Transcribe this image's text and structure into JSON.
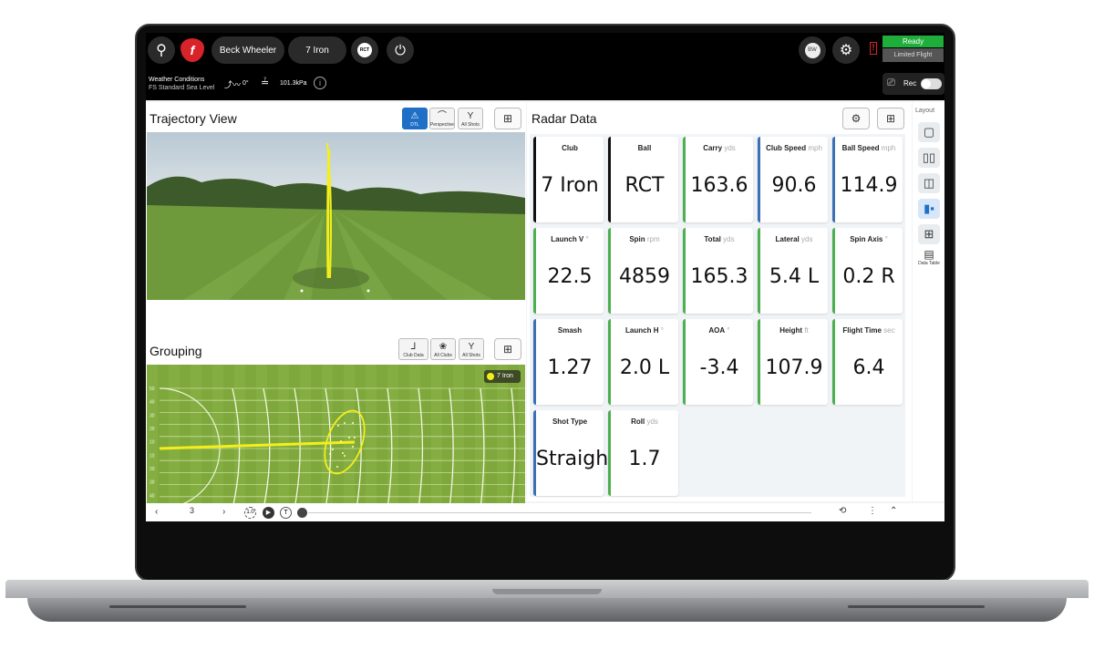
{
  "topbar": {
    "player_name": "Beck Wheeler",
    "club": "7 Iron",
    "ball_badge": "RCT",
    "avatar_initials": "BW",
    "status": "Ready",
    "mode": "Limited Flight",
    "weather_label": "Weather Conditions",
    "weather_value": "FS Standard Sea Level",
    "wind": "0°",
    "pressure": "101.3kPa",
    "rec_label": "Rec",
    "rec_on": false
  },
  "trajectory": {
    "title": "Trajectory View",
    "views": [
      {
        "label": "DTL",
        "icon": "dtl-icon",
        "active": true
      },
      {
        "label": "Perspective",
        "icon": "perspective-icon",
        "active": false
      },
      {
        "label": "All Shots",
        "icon": "all-shots-icon",
        "active": false
      }
    ]
  },
  "grouping": {
    "title": "Grouping",
    "filters": [
      {
        "label": "Club Data",
        "icon": "club-icon"
      },
      {
        "label": "All Clubs",
        "icon": "clubs-icon"
      },
      {
        "label": "All Shots",
        "icon": "all-shots-icon"
      }
    ],
    "legend": "7 Iron",
    "y_ticks": [
      "50",
      "40",
      "30",
      "20",
      "10",
      "10",
      "20",
      "30",
      "40",
      "50"
    ],
    "x_ticks": [
      "100",
      "150",
      "200",
      "250",
      "300"
    ],
    "colors": {
      "shot": "#f4ee1c",
      "grass": "#7fa83c"
    }
  },
  "radar": {
    "title": "Radar Data",
    "cards": [
      {
        "label": "Club",
        "unit": "",
        "value": "7 Iron",
        "accent": "#111111"
      },
      {
        "label": "Ball",
        "unit": "",
        "value": "RCT",
        "accent": "#111111"
      },
      {
        "label": "Carry",
        "unit": "yds",
        "value": "163.6",
        "accent": "#4caf50"
      },
      {
        "label": "Club Speed",
        "unit": "mph",
        "value": "90.6",
        "accent": "#3b6fb6"
      },
      {
        "label": "Ball Speed",
        "unit": "mph",
        "value": "114.9",
        "accent": "#3b6fb6"
      },
      {
        "label": "Launch V",
        "unit": "°",
        "value": "22.5",
        "accent": "#4caf50"
      },
      {
        "label": "Spin",
        "unit": "rpm",
        "value": "4859",
        "accent": "#4caf50"
      },
      {
        "label": "Total",
        "unit": "yds",
        "value": "165.3",
        "accent": "#4caf50"
      },
      {
        "label": "Lateral",
        "unit": "yds",
        "value": "5.4 L",
        "accent": "#4caf50"
      },
      {
        "label": "Spin Axis",
        "unit": "°",
        "value": "0.2 R",
        "accent": "#4caf50"
      },
      {
        "label": "Smash",
        "unit": "",
        "value": "1.27",
        "accent": "#3b6fb6"
      },
      {
        "label": "Launch H",
        "unit": "°",
        "value": "2.0 L",
        "accent": "#4caf50"
      },
      {
        "label": "AOA",
        "unit": "°",
        "value": "-3.4",
        "accent": "#4caf50"
      },
      {
        "label": "Height",
        "unit": "ft",
        "value": "107.9",
        "accent": "#4caf50"
      },
      {
        "label": "Flight Time",
        "unit": "sec",
        "value": "6.4",
        "accent": "#4caf50"
      },
      {
        "label": "Shot Type",
        "unit": "",
        "value": "Straight",
        "accent": "#3b6fb6"
      },
      {
        "label": "Roll",
        "unit": "yds",
        "value": "1.7",
        "accent": "#4caf50"
      }
    ]
  },
  "layout": {
    "title": "Layout",
    "options": [
      {
        "icon": "single-layout-icon",
        "active": false,
        "label": ""
      },
      {
        "icon": "two-column-layout-icon",
        "active": false,
        "label": ""
      },
      {
        "icon": "split-layout-icon",
        "active": false,
        "label": ""
      },
      {
        "icon": "split-layout-filled-icon",
        "active": true,
        "label": ""
      },
      {
        "icon": "grid-layout-icon",
        "active": false,
        "label": ""
      },
      {
        "icon": "data-table-icon",
        "active": false,
        "label": "Data Table"
      }
    ]
  },
  "playback": {
    "shot_number": "3",
    "speed": "1.0"
  }
}
